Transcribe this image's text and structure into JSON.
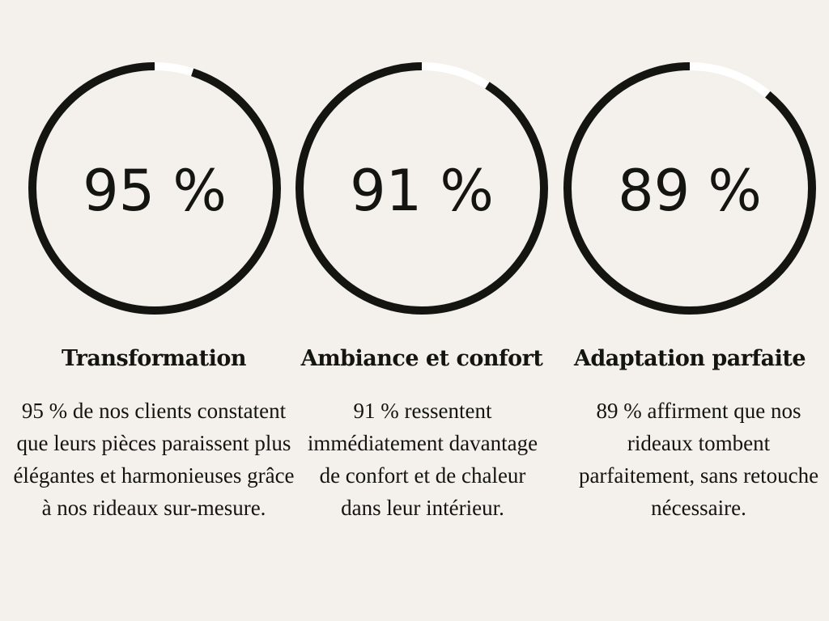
{
  "chart_data": {
    "type": "donut",
    "track_color": "#ffffff",
    "ring_color": "#141411",
    "background": "#f4f1ec",
    "stats": [
      {
        "value": 95,
        "label": "95 %",
        "title": "Transformation",
        "description": "95 % de nos clients constatent que leurs pièces paraissent plus élégantes et harmonieuses grâce à nos rideaux sur-mesure."
      },
      {
        "value": 91,
        "label": "91 %",
        "title": "Ambiance et confort",
        "description": "91 % ressentent immédiatement davantage de confort et de chaleur dans leur intérieur."
      },
      {
        "value": 89,
        "label": "89 %",
        "title": "Adaptation parfaite",
        "description": "89 % affirment que nos rideaux tombent parfaitement, sans retouche nécessaire."
      }
    ]
  }
}
